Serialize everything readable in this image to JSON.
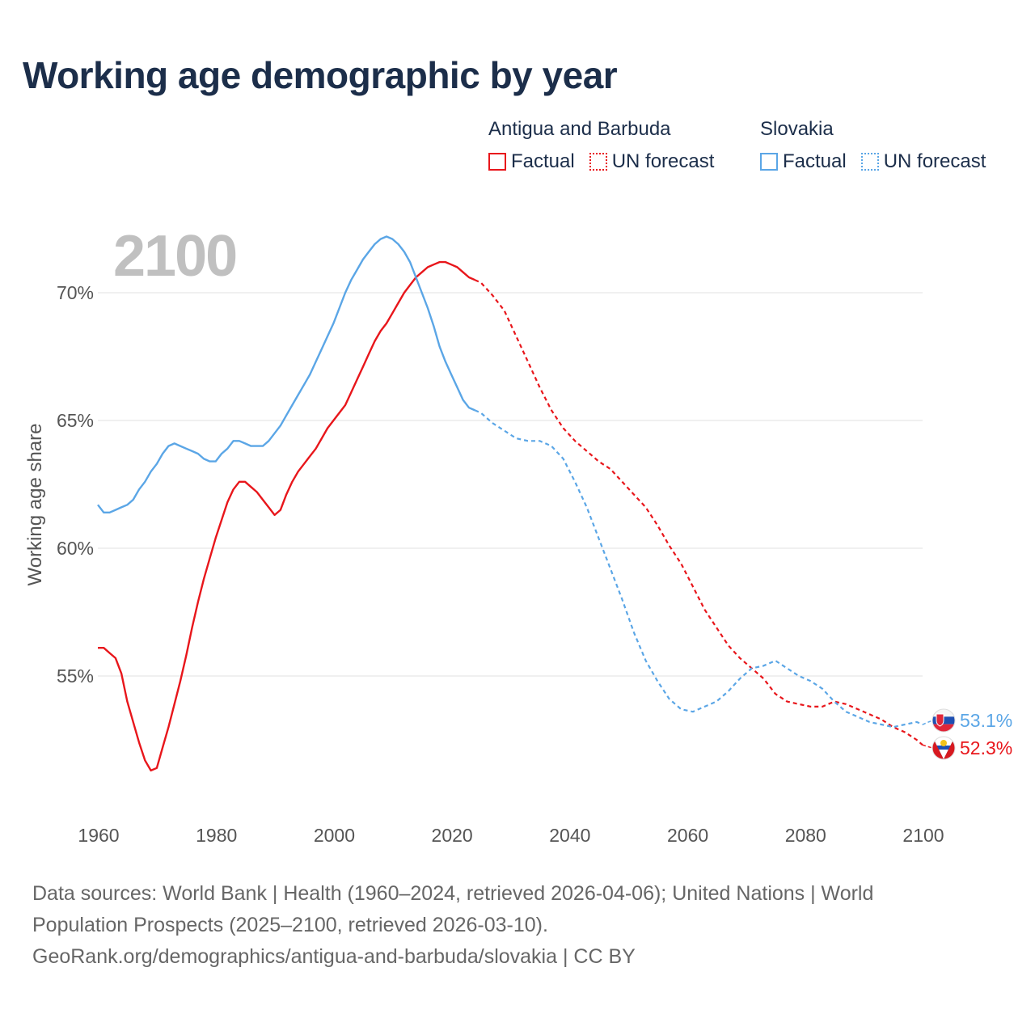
{
  "title": "Working age demographic by year",
  "year_display": "2100",
  "legend": {
    "groups": [
      {
        "country": "Antigua and Barbuda",
        "factual": "Factual",
        "forecast": "UN forecast",
        "color": "#e8161b"
      },
      {
        "country": "Slovakia",
        "factual": "Factual",
        "forecast": "UN forecast",
        "color": "#5ba6e6"
      }
    ]
  },
  "footer": {
    "line1": "Data sources: World Bank | Health (1960–2024, retrieved 2026-04-06); United Nations | World",
    "line2": "Population Prospects (2025–2100, retrieved 2026-03-10).",
    "line3": "GeoRank.org/demographics/antigua-and-barbuda/slovakia | CC BY"
  },
  "chart_data": {
    "type": "line",
    "title": "Working age demographic by year",
    "xlabel": "",
    "ylabel": "Working age share",
    "xlim": [
      1960,
      2100
    ],
    "ylim": [
      50,
      73
    ],
    "x_ticks": [
      1960,
      1980,
      2000,
      2020,
      2040,
      2060,
      2080,
      2100
    ],
    "y_ticks": [
      55,
      60,
      65,
      70
    ],
    "y_tick_labels": [
      "55%",
      "60%",
      "65%",
      "70%"
    ],
    "grid": true,
    "series": [
      {
        "name": "Antigua and Barbuda",
        "color": "#e8161b",
        "factual_end_year": 2024,
        "end_label": "52.3%",
        "points": [
          [
            1960,
            56.1
          ],
          [
            1961,
            56.1
          ],
          [
            1962,
            55.9
          ],
          [
            1963,
            55.7
          ],
          [
            1964,
            55.1
          ],
          [
            1965,
            54.0
          ],
          [
            1966,
            53.2
          ],
          [
            1967,
            52.4
          ],
          [
            1968,
            51.7
          ],
          [
            1969,
            51.3
          ],
          [
            1970,
            51.4
          ],
          [
            1971,
            52.2
          ],
          [
            1972,
            53.0
          ],
          [
            1973,
            53.9
          ],
          [
            1974,
            54.8
          ],
          [
            1975,
            55.8
          ],
          [
            1976,
            56.9
          ],
          [
            1977,
            57.9
          ],
          [
            1978,
            58.8
          ],
          [
            1979,
            59.6
          ],
          [
            1980,
            60.4
          ],
          [
            1981,
            61.1
          ],
          [
            1982,
            61.8
          ],
          [
            1983,
            62.3
          ],
          [
            1984,
            62.6
          ],
          [
            1985,
            62.6
          ],
          [
            1986,
            62.4
          ],
          [
            1987,
            62.2
          ],
          [
            1988,
            61.9
          ],
          [
            1989,
            61.6
          ],
          [
            1990,
            61.3
          ],
          [
            1991,
            61.5
          ],
          [
            1992,
            62.1
          ],
          [
            1993,
            62.6
          ],
          [
            1994,
            63.0
          ],
          [
            1995,
            63.3
          ],
          [
            1996,
            63.6
          ],
          [
            1997,
            63.9
          ],
          [
            1998,
            64.3
          ],
          [
            1999,
            64.7
          ],
          [
            2000,
            65.0
          ],
          [
            2001,
            65.3
          ],
          [
            2002,
            65.6
          ],
          [
            2003,
            66.1
          ],
          [
            2004,
            66.6
          ],
          [
            2005,
            67.1
          ],
          [
            2006,
            67.6
          ],
          [
            2007,
            68.1
          ],
          [
            2008,
            68.5
          ],
          [
            2009,
            68.8
          ],
          [
            2010,
            69.2
          ],
          [
            2011,
            69.6
          ],
          [
            2012,
            70.0
          ],
          [
            2013,
            70.3
          ],
          [
            2014,
            70.6
          ],
          [
            2015,
            70.8
          ],
          [
            2016,
            71.0
          ],
          [
            2017,
            71.1
          ],
          [
            2018,
            71.2
          ],
          [
            2019,
            71.2
          ],
          [
            2020,
            71.1
          ],
          [
            2021,
            71.0
          ],
          [
            2022,
            70.8
          ],
          [
            2023,
            70.6
          ],
          [
            2024,
            70.5
          ],
          [
            2025,
            70.4
          ],
          [
            2027,
            69.9
          ],
          [
            2029,
            69.3
          ],
          [
            2031,
            68.3
          ],
          [
            2033,
            67.3
          ],
          [
            2035,
            66.3
          ],
          [
            2037,
            65.4
          ],
          [
            2039,
            64.7
          ],
          [
            2041,
            64.2
          ],
          [
            2043,
            63.8
          ],
          [
            2045,
            63.4
          ],
          [
            2047,
            63.1
          ],
          [
            2049,
            62.6
          ],
          [
            2051,
            62.1
          ],
          [
            2053,
            61.6
          ],
          [
            2055,
            60.9
          ],
          [
            2057,
            60.1
          ],
          [
            2059,
            59.4
          ],
          [
            2061,
            58.5
          ],
          [
            2063,
            57.6
          ],
          [
            2065,
            56.9
          ],
          [
            2067,
            56.2
          ],
          [
            2069,
            55.7
          ],
          [
            2071,
            55.3
          ],
          [
            2073,
            54.9
          ],
          [
            2075,
            54.3
          ],
          [
            2077,
            54.0
          ],
          [
            2079,
            53.9
          ],
          [
            2081,
            53.8
          ],
          [
            2083,
            53.8
          ],
          [
            2085,
            54.0
          ],
          [
            2087,
            53.9
          ],
          [
            2089,
            53.7
          ],
          [
            2091,
            53.5
          ],
          [
            2093,
            53.3
          ],
          [
            2095,
            53.0
          ],
          [
            2097,
            52.8
          ],
          [
            2099,
            52.5
          ],
          [
            2100,
            52.3
          ]
        ]
      },
      {
        "name": "Slovakia",
        "color": "#5ba6e6",
        "factual_end_year": 2024,
        "end_label": "53.1%",
        "points": [
          [
            1960,
            61.7
          ],
          [
            1961,
            61.4
          ],
          [
            1962,
            61.4
          ],
          [
            1963,
            61.5
          ],
          [
            1964,
            61.6
          ],
          [
            1965,
            61.7
          ],
          [
            1966,
            61.9
          ],
          [
            1967,
            62.3
          ],
          [
            1968,
            62.6
          ],
          [
            1969,
            63.0
          ],
          [
            1970,
            63.3
          ],
          [
            1971,
            63.7
          ],
          [
            1972,
            64.0
          ],
          [
            1973,
            64.1
          ],
          [
            1974,
            64.0
          ],
          [
            1975,
            63.9
          ],
          [
            1976,
            63.8
          ],
          [
            1977,
            63.7
          ],
          [
            1978,
            63.5
          ],
          [
            1979,
            63.4
          ],
          [
            1980,
            63.4
          ],
          [
            1981,
            63.7
          ],
          [
            1982,
            63.9
          ],
          [
            1983,
            64.2
          ],
          [
            1984,
            64.2
          ],
          [
            1985,
            64.1
          ],
          [
            1986,
            64.0
          ],
          [
            1987,
            64.0
          ],
          [
            1988,
            64.0
          ],
          [
            1989,
            64.2
          ],
          [
            1990,
            64.5
          ],
          [
            1991,
            64.8
          ],
          [
            1992,
            65.2
          ],
          [
            1993,
            65.6
          ],
          [
            1994,
            66.0
          ],
          [
            1995,
            66.4
          ],
          [
            1996,
            66.8
          ],
          [
            1997,
            67.3
          ],
          [
            1998,
            67.8
          ],
          [
            1999,
            68.3
          ],
          [
            2000,
            68.8
          ],
          [
            2001,
            69.4
          ],
          [
            2002,
            70.0
          ],
          [
            2003,
            70.5
          ],
          [
            2004,
            70.9
          ],
          [
            2005,
            71.3
          ],
          [
            2006,
            71.6
          ],
          [
            2007,
            71.9
          ],
          [
            2008,
            72.1
          ],
          [
            2009,
            72.2
          ],
          [
            2010,
            72.1
          ],
          [
            2011,
            71.9
          ],
          [
            2012,
            71.6
          ],
          [
            2013,
            71.2
          ],
          [
            2014,
            70.6
          ],
          [
            2015,
            70.0
          ],
          [
            2016,
            69.4
          ],
          [
            2017,
            68.7
          ],
          [
            2018,
            67.9
          ],
          [
            2019,
            67.3
          ],
          [
            2020,
            66.8
          ],
          [
            2021,
            66.3
          ],
          [
            2022,
            65.8
          ],
          [
            2023,
            65.5
          ],
          [
            2024,
            65.4
          ],
          [
            2025,
            65.3
          ],
          [
            2027,
            64.9
          ],
          [
            2029,
            64.6
          ],
          [
            2031,
            64.3
          ],
          [
            2033,
            64.2
          ],
          [
            2035,
            64.2
          ],
          [
            2037,
            64.0
          ],
          [
            2039,
            63.5
          ],
          [
            2041,
            62.6
          ],
          [
            2043,
            61.6
          ],
          [
            2045,
            60.4
          ],
          [
            2047,
            59.2
          ],
          [
            2049,
            58.0
          ],
          [
            2051,
            56.7
          ],
          [
            2053,
            55.6
          ],
          [
            2055,
            54.8
          ],
          [
            2057,
            54.1
          ],
          [
            2059,
            53.7
          ],
          [
            2061,
            53.6
          ],
          [
            2063,
            53.8
          ],
          [
            2065,
            54.0
          ],
          [
            2067,
            54.4
          ],
          [
            2069,
            54.9
          ],
          [
            2071,
            55.3
          ],
          [
            2073,
            55.4
          ],
          [
            2075,
            55.6
          ],
          [
            2077,
            55.3
          ],
          [
            2079,
            55.0
          ],
          [
            2081,
            54.8
          ],
          [
            2083,
            54.5
          ],
          [
            2085,
            54.0
          ],
          [
            2087,
            53.6
          ],
          [
            2089,
            53.4
          ],
          [
            2091,
            53.2
          ],
          [
            2093,
            53.1
          ],
          [
            2095,
            53.0
          ],
          [
            2097,
            53.1
          ],
          [
            2099,
            53.2
          ],
          [
            2100,
            53.1
          ]
        ]
      }
    ]
  }
}
